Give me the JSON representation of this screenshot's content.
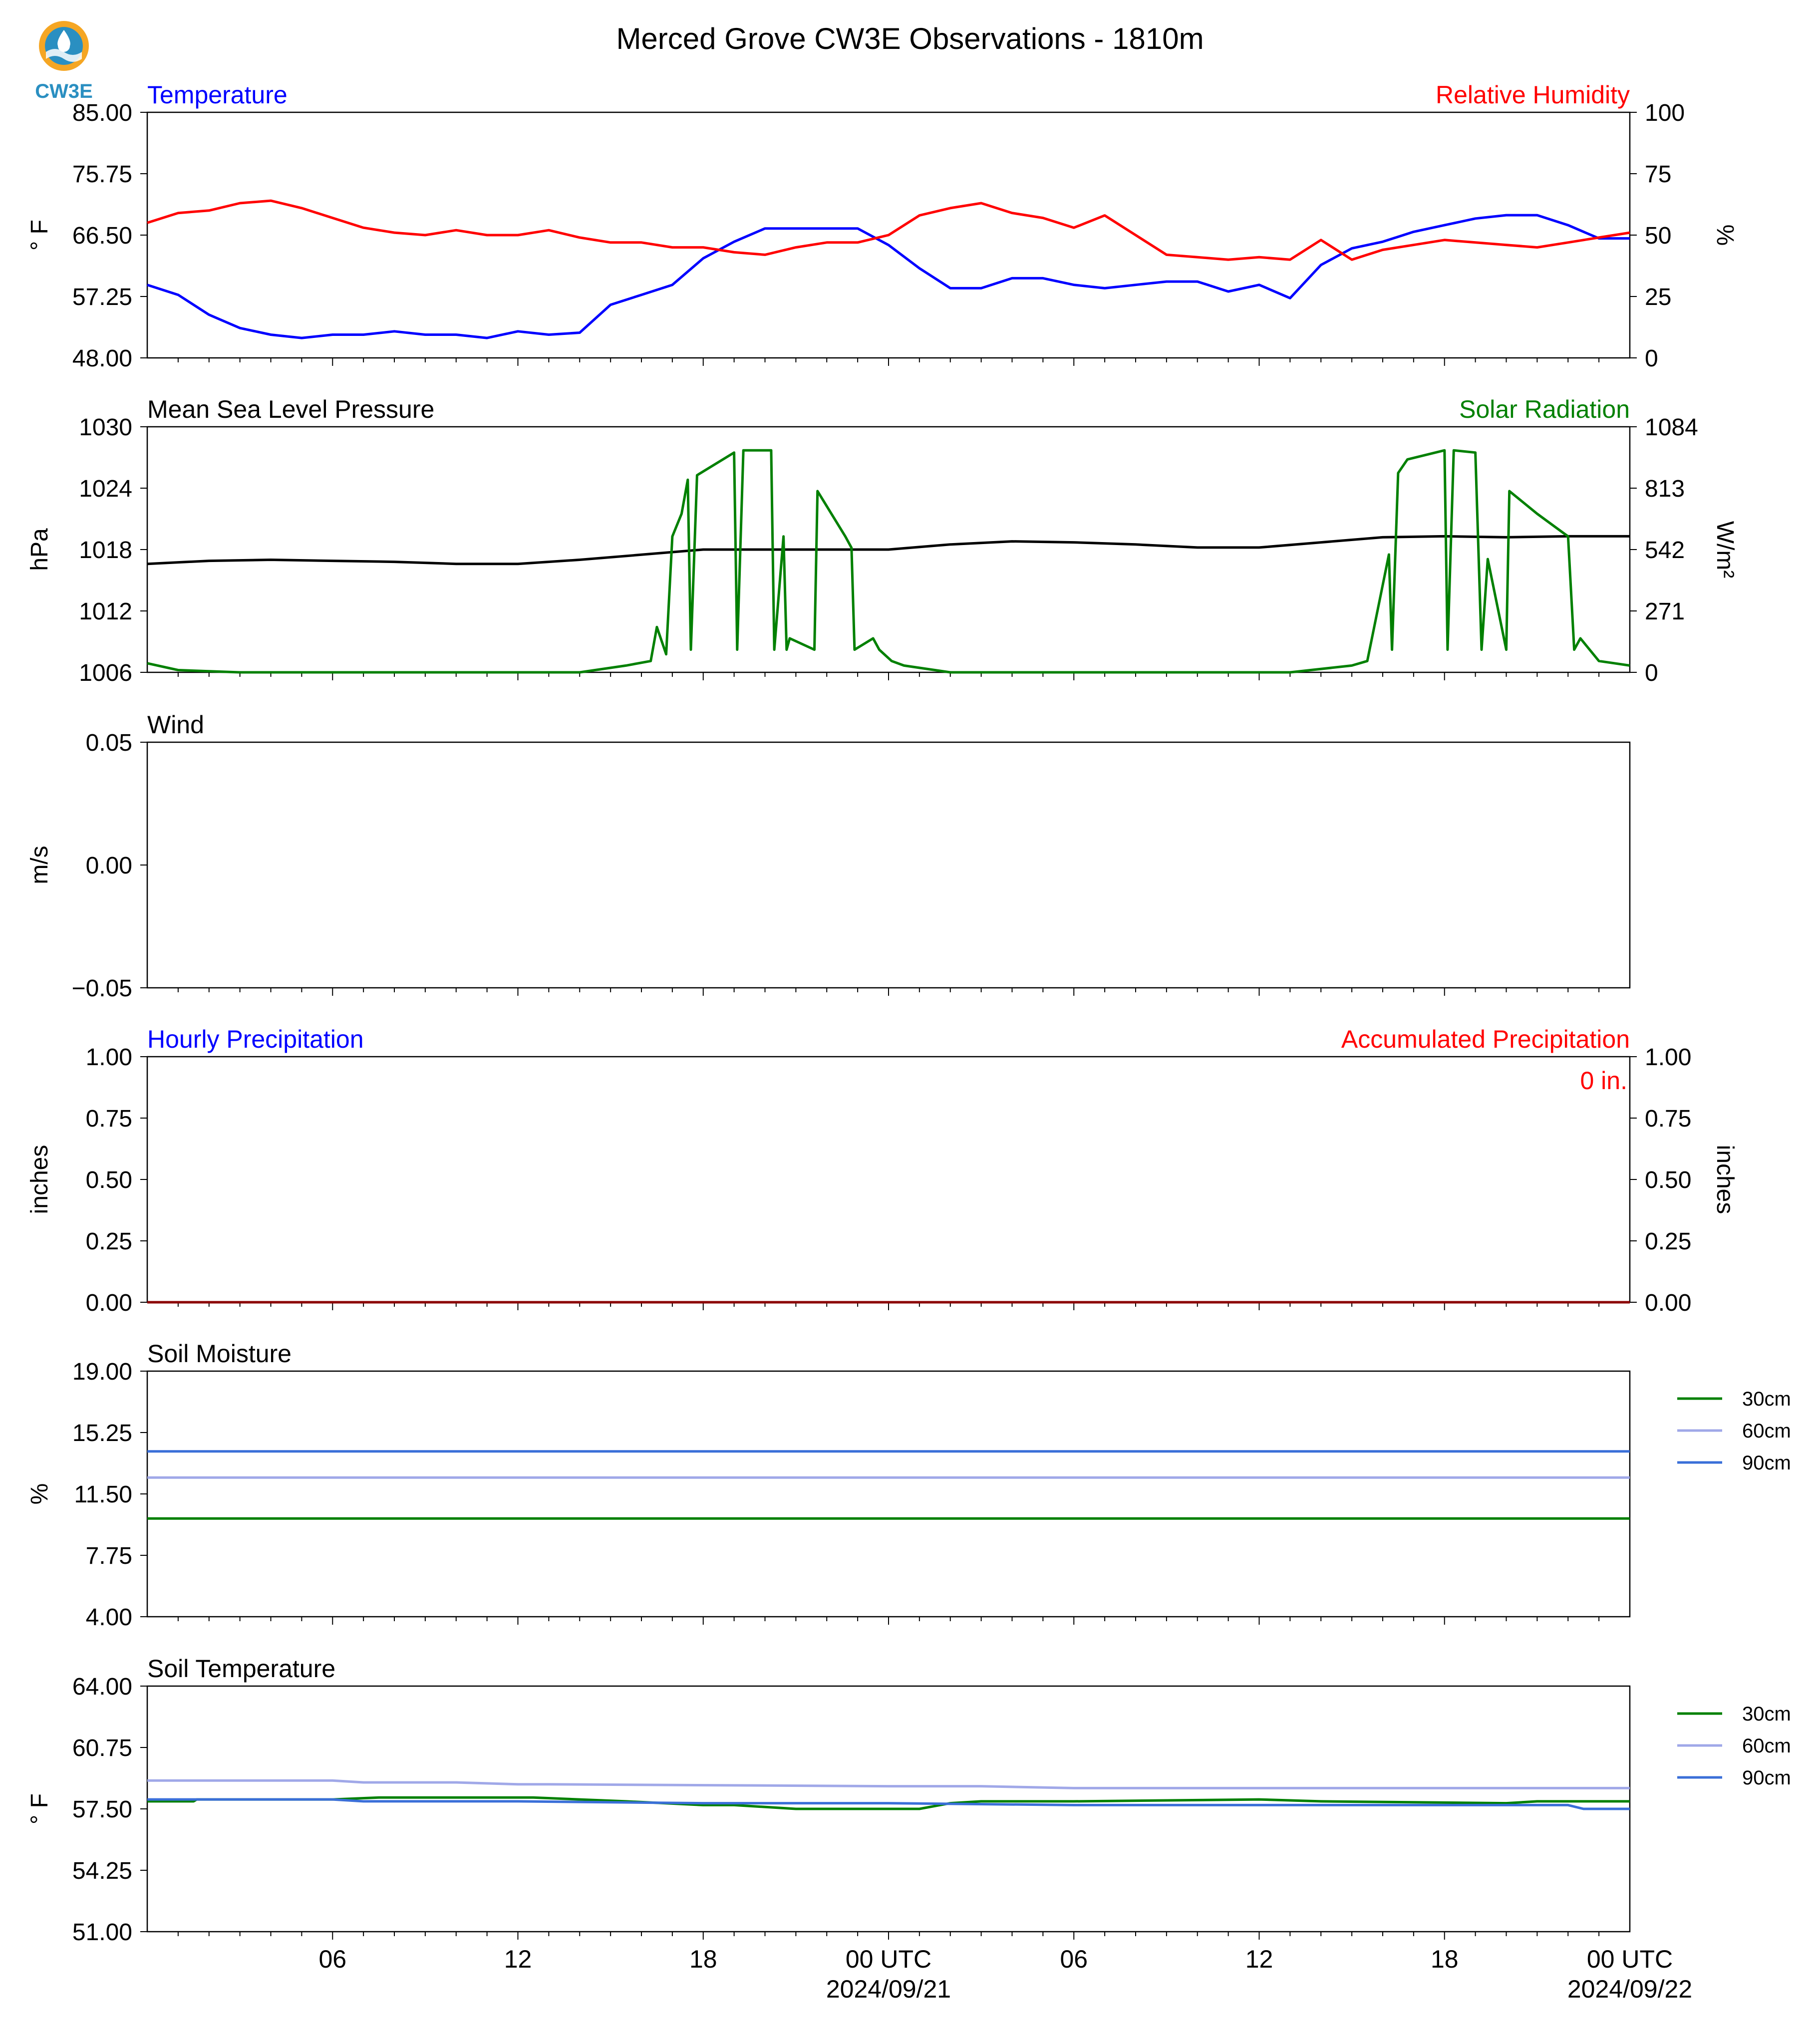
{
  "title": "Merced Grove CW3E Observations - 1810m",
  "logo": {
    "text": "CW3E",
    "ring_color": "#f5a623",
    "drop_color": "#2a8fc1"
  },
  "x_axis": {
    "tick_labels": [
      "06",
      "12",
      "18",
      "00 UTC",
      "06",
      "12",
      "18",
      "00 UTC"
    ],
    "date_labels": [
      "2024/09/21",
      "2024/09/22"
    ]
  },
  "colors": {
    "blue": "#0000ff",
    "red": "#ff0000",
    "green": "#008000",
    "black": "#000000",
    "light_blue": "#a0a8e8",
    "mid_blue": "#3a6fd8"
  },
  "chart_data": [
    {
      "type": "line",
      "title_left": "Temperature",
      "title_right": "Relative Humidity",
      "ylabel_left": "° F",
      "ylabel_right": "%",
      "ylim_left": [
        48,
        85
      ],
      "ylim_right": [
        0,
        100
      ],
      "yticks_left": [
        "85.00",
        "75.75",
        "66.50",
        "57.25",
        "48.00"
      ],
      "yticks_right": [
        "100",
        "75",
        "50",
        "25",
        "0"
      ],
      "series": [
        {
          "name": "Temperature",
          "axis": "left",
          "color": "#0000ff",
          "x": [
            0,
            1,
            2,
            3,
            4,
            5,
            6,
            7,
            8,
            9,
            10,
            11,
            12,
            13,
            14,
            15,
            16,
            17,
            18,
            19,
            20,
            21,
            22,
            23,
            24,
            25,
            26,
            27,
            28,
            29,
            30,
            31,
            32,
            33,
            34,
            35,
            36,
            37,
            38,
            39,
            40,
            41,
            42,
            43,
            44,
            45,
            46,
            47,
            48
          ],
          "y": [
            59,
            57.5,
            54.5,
            52.5,
            51.5,
            51,
            51.5,
            51.5,
            52,
            51.5,
            51.5,
            51,
            52,
            51.5,
            51.8,
            56,
            57.5,
            59,
            63,
            65.5,
            67.5,
            67.5,
            67.5,
            67.5,
            65,
            61.5,
            58.5,
            58.5,
            60,
            60,
            59,
            58.5,
            59,
            59.5,
            59.5,
            58,
            59,
            57,
            62,
            64.5,
            65.5,
            67,
            68,
            69,
            69.5,
            69.5,
            68,
            66,
            66
          ]
        },
        {
          "name": "Relative Humidity",
          "axis": "right",
          "color": "#ff0000",
          "x": [
            0,
            1,
            2,
            3,
            4,
            5,
            6,
            7,
            8,
            9,
            10,
            11,
            12,
            13,
            14,
            15,
            16,
            17,
            18,
            19,
            20,
            21,
            22,
            23,
            24,
            25,
            26,
            27,
            28,
            29,
            30,
            31,
            32,
            33,
            34,
            35,
            36,
            37,
            38,
            39,
            40,
            41,
            42,
            43,
            44,
            45,
            46,
            47,
            48
          ],
          "y": [
            55,
            59,
            60,
            63,
            64,
            61,
            57,
            53,
            51,
            50,
            52,
            50,
            50,
            52,
            49,
            47,
            47,
            45,
            45,
            43,
            42,
            45,
            47,
            47,
            50,
            58,
            61,
            63,
            59,
            57,
            53,
            58,
            50,
            42,
            41,
            40,
            41,
            40,
            48,
            40,
            44,
            46,
            48,
            47,
            46,
            45,
            47,
            49,
            51
          ]
        }
      ]
    },
    {
      "type": "line",
      "title_left": "Mean Sea Level Pressure",
      "title_right": "Solar Radiation",
      "ylabel_left": "hPa",
      "ylabel_right": "W/m²",
      "ylim_left": [
        1006,
        1030
      ],
      "ylim_right": [
        0,
        1084
      ],
      "yticks_left": [
        "1030",
        "1024",
        "1018",
        "1012",
        "1006"
      ],
      "yticks_right": [
        "1084",
        "813",
        "542",
        "271",
        "0"
      ],
      "series": [
        {
          "name": "Mean Sea Level Pressure",
          "axis": "left",
          "color": "#000000",
          "x": [
            0,
            2,
            4,
            6,
            8,
            10,
            12,
            14,
            16,
            18,
            20,
            22,
            24,
            26,
            28,
            30,
            32,
            34,
            36,
            38,
            40,
            42,
            44,
            46,
            48
          ],
          "y": [
            1016.6,
            1016.9,
            1017,
            1016.9,
            1016.8,
            1016.6,
            1016.6,
            1017,
            1017.5,
            1018,
            1018,
            1018,
            1018,
            1018.5,
            1018.8,
            1018.7,
            1018.5,
            1018.2,
            1018.2,
            1018.7,
            1019.2,
            1019.3,
            1019.2,
            1019.3,
            1019.3
          ]
        },
        {
          "name": "Solar Radiation",
          "axis": "right",
          "color": "#008000",
          "x": [
            0,
            1,
            3,
            7,
            11,
            14,
            15.5,
            16.3,
            16.5,
            16.8,
            17,
            17.3,
            17.5,
            17.6,
            17.8,
            19,
            19.1,
            19.3,
            20.2,
            20.3,
            20.6,
            20.7,
            20.8,
            21.6,
            21.7,
            22.6,
            22.8,
            22.9,
            23.5,
            23.7,
            24.1,
            24.5,
            26,
            30,
            34,
            37,
            39,
            39.5,
            40.2,
            40.3,
            40.5,
            40.8,
            42,
            42.1,
            42.3,
            43,
            43.2,
            43.4,
            44,
            44.1,
            45,
            46,
            46.2,
            46.4,
            47,
            47.5,
            48
          ],
          "y": [
            40,
            10,
            0,
            0,
            0,
            0,
            30,
            50,
            200,
            80,
            600,
            700,
            850,
            100,
            870,
            970,
            100,
            980,
            980,
            100,
            600,
            100,
            150,
            100,
            800,
            600,
            550,
            100,
            150,
            100,
            50,
            30,
            0,
            0,
            0,
            0,
            30,
            50,
            520,
            100,
            880,
            940,
            980,
            100,
            980,
            970,
            100,
            500,
            100,
            800,
            700,
            600,
            100,
            150,
            50,
            40,
            30
          ]
        }
      ]
    },
    {
      "type": "line",
      "title_left": "Wind",
      "ylabel_left": "m/s",
      "ylim_left": [
        -0.055,
        0.055
      ],
      "yticks_left": [
        "0.05",
        "0.00",
        "−0.05"
      ],
      "series": []
    },
    {
      "type": "line",
      "title_left": "Hourly Precipitation",
      "title_right": "Accumulated Precipitation",
      "ylabel_left": "inches",
      "ylabel_right": "inches",
      "ylim_left": [
        0,
        1
      ],
      "ylim_right": [
        0,
        1
      ],
      "yticks_left": [
        "1.00",
        "0.75",
        "0.50",
        "0.25",
        "0.00"
      ],
      "yticks_right": [
        "1.00",
        "0.75",
        "0.50",
        "0.25",
        "0.00"
      ],
      "annotation": "0 in.",
      "series": [
        {
          "name": "Hourly Precipitation",
          "axis": "left",
          "color": "#0000ff",
          "x": [
            0,
            48
          ],
          "y": [
            0,
            0
          ]
        },
        {
          "name": "Accumulated Precipitation",
          "axis": "right",
          "color": "#8b0000",
          "x": [
            0,
            48
          ],
          "y": [
            0,
            0
          ]
        }
      ]
    },
    {
      "type": "line",
      "title_left": "Soil Moisture",
      "ylabel_left": "%",
      "ylim_left": [
        4,
        19
      ],
      "yticks_left": [
        "19.00",
        "15.25",
        "11.50",
        "7.75",
        "4.00"
      ],
      "legend": [
        "30cm",
        "60cm",
        "90cm"
      ],
      "series": [
        {
          "name": "30cm",
          "axis": "left",
          "color": "#008000",
          "x": [
            0,
            48
          ],
          "y": [
            10,
            10
          ]
        },
        {
          "name": "60cm",
          "axis": "left",
          "color": "#a0a8e8",
          "x": [
            0,
            48
          ],
          "y": [
            12.5,
            12.5
          ]
        },
        {
          "name": "90cm",
          "axis": "left",
          "color": "#3a6fd8",
          "x": [
            0,
            48
          ],
          "y": [
            14.1,
            14.1
          ]
        }
      ]
    },
    {
      "type": "line",
      "title_left": "Soil Temperature",
      "ylabel_left": "° F",
      "ylim_left": [
        51,
        64
      ],
      "yticks_left": [
        "64.00",
        "60.75",
        "57.50",
        "54.25",
        "51.00"
      ],
      "legend": [
        "30cm",
        "60cm",
        "90cm"
      ],
      "series": [
        {
          "name": "30cm",
          "axis": "left",
          "color": "#008000",
          "x": [
            0,
            1.5,
            1.6,
            6.0,
            7.5,
            12.5,
            15.5,
            18,
            19,
            21,
            24,
            25,
            26,
            27,
            30,
            36,
            38,
            44,
            45,
            48
          ],
          "y": [
            57.9,
            57.9,
            58.0,
            58.0,
            58.1,
            58.1,
            57.9,
            57.7,
            57.7,
            57.5,
            57.5,
            57.5,
            57.8,
            57.9,
            57.9,
            58.0,
            57.9,
            57.8,
            57.9,
            57.9
          ]
        },
        {
          "name": "60cm",
          "axis": "left",
          "color": "#a0a8e8",
          "x": [
            0,
            6,
            7,
            10,
            12,
            13,
            24,
            27,
            30,
            48
          ],
          "y": [
            59.0,
            59.0,
            58.9,
            58.9,
            58.8,
            58.8,
            58.7,
            58.7,
            58.6,
            58.6
          ]
        },
        {
          "name": "90cm",
          "axis": "left",
          "color": "#3a6fd8",
          "x": [
            0,
            6,
            7,
            12,
            18,
            24,
            30,
            36,
            46,
            46.5,
            48
          ],
          "y": [
            58.0,
            58.0,
            57.9,
            57.9,
            57.8,
            57.8,
            57.7,
            57.7,
            57.7,
            57.5,
            57.5
          ]
        }
      ]
    }
  ]
}
